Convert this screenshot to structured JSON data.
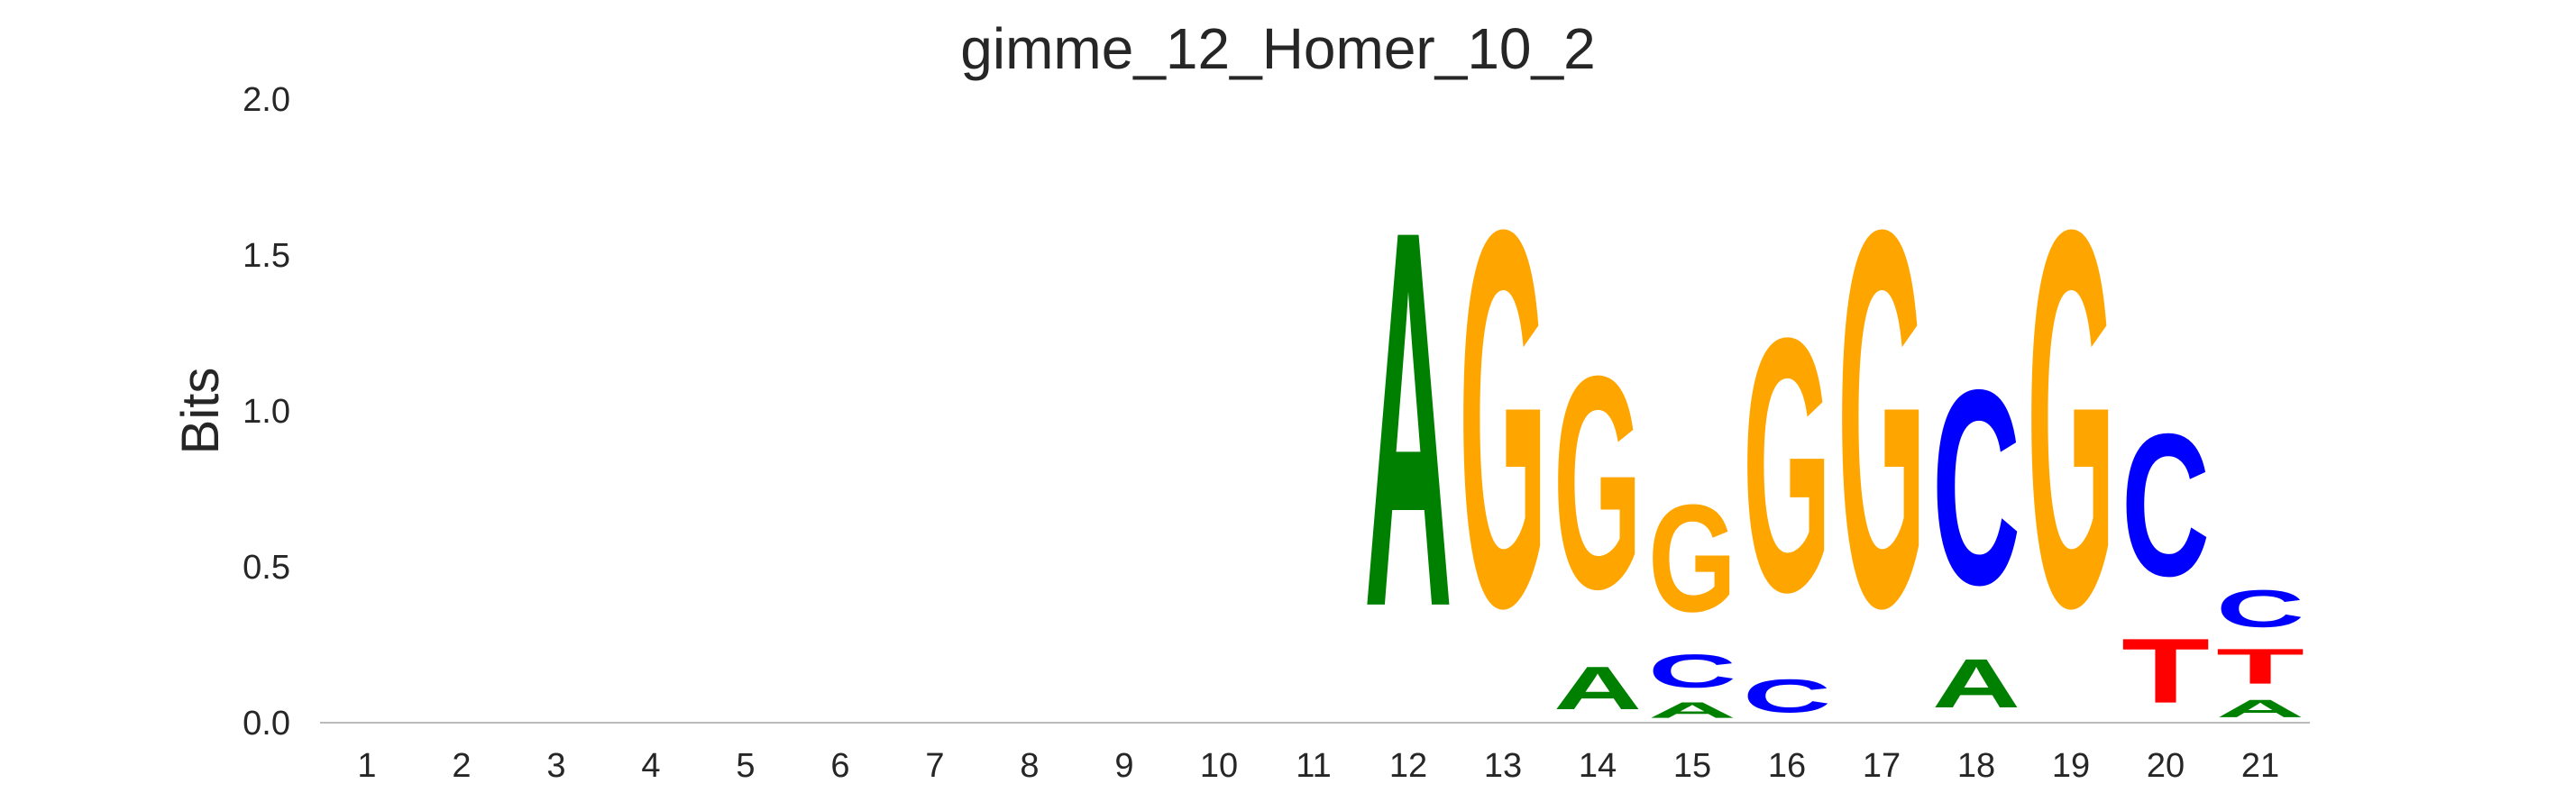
{
  "chart_data": {
    "type": "sequence-logo",
    "title": "gimme_12_Homer_10_2",
    "ylabel": "Bits",
    "xlabel": "",
    "ylim": [
      0,
      2.0
    ],
    "yticks": [
      "0.0",
      "0.5",
      "1.0",
      "1.5",
      "2.0"
    ],
    "ytick_values": [
      0,
      0.5,
      1.0,
      1.5,
      2.0
    ],
    "positions": [
      "1",
      "2",
      "3",
      "4",
      "5",
      "6",
      "7",
      "8",
      "9",
      "10",
      "11",
      "12",
      "13",
      "14",
      "15",
      "16",
      "17",
      "18",
      "19",
      "20",
      "21"
    ],
    "colors": {
      "A": "#008000",
      "C": "#0000ff",
      "G": "#ffa500",
      "T": "#ff0000"
    },
    "stacks": [
      [],
      [],
      [],
      [],
      [],
      [],
      [],
      [],
      [],
      [],
      [],
      [
        {
          "letter": "A",
          "height": 1.93
        }
      ],
      [
        {
          "letter": "G",
          "height": 1.93
        }
      ],
      [
        {
          "letter": "A",
          "height": 0.22
        },
        {
          "letter": "G",
          "height": 1.09
        }
      ],
      [
        {
          "letter": "A",
          "height": 0.08
        },
        {
          "letter": "C",
          "height": 0.17
        },
        {
          "letter": "G",
          "height": 0.55
        }
      ],
      [
        {
          "letter": "C",
          "height": 0.17
        },
        {
          "letter": "G",
          "height": 1.3
        }
      ],
      [
        {
          "letter": "G",
          "height": 1.93
        }
      ],
      [
        {
          "letter": "A",
          "height": 0.25
        },
        {
          "letter": "C",
          "height": 1.0
        }
      ],
      [
        {
          "letter": "G",
          "height": 1.93
        }
      ],
      [
        {
          "letter": "T",
          "height": 0.33
        },
        {
          "letter": "C",
          "height": 0.73
        }
      ],
      [
        {
          "letter": "A",
          "height": 0.09
        },
        {
          "letter": "T",
          "height": 0.18
        },
        {
          "letter": "C",
          "height": 0.19
        }
      ]
    ]
  }
}
